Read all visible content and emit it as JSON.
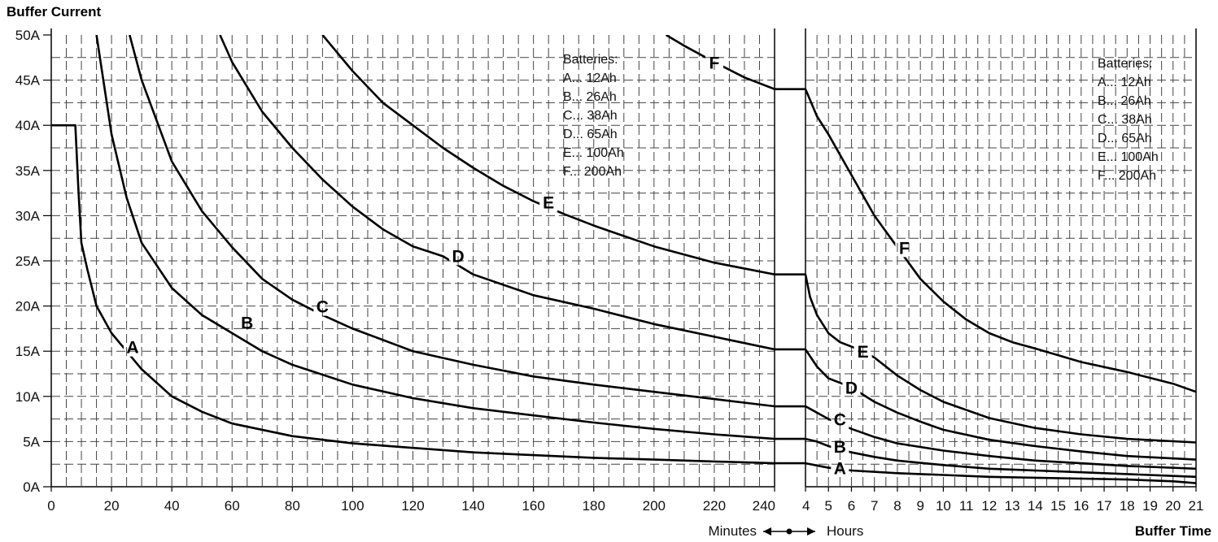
{
  "chart_data": {
    "type": "line",
    "title": "Buffer Current",
    "ylabel": "Buffer Current",
    "xlabel": "Buffer Time",
    "ylim": [
      0,
      50
    ],
    "y_ticks": [
      "0A",
      "5A",
      "10A",
      "15A",
      "20A",
      "25A",
      "30A",
      "35A",
      "40A",
      "45A",
      "50A"
    ],
    "scale_switch_label": {
      "left": "Minutes",
      "right": "Hours"
    },
    "panels": [
      {
        "name": "minutes",
        "unit": "Minutes",
        "xlim": [
          0,
          240
        ],
        "x_ticks": [
          "0",
          "20",
          "40",
          "60",
          "80",
          "100",
          "120",
          "140",
          "160",
          "180",
          "200",
          "220",
          "240"
        ],
        "legend_title": "Batteries:",
        "legend": [
          "A... 12Ah",
          "B... 26Ah",
          "C... 38Ah",
          "D... 65Ah",
          "E... 100Ah",
          "F... 200Ah"
        ],
        "series": [
          {
            "name": "A",
            "label_at": [
              27,
              15.5
            ],
            "x": [
              0,
              8,
              9,
              10,
              12,
              15,
              20,
              25,
              30,
              40,
              50,
              60,
              80,
              100,
              120,
              140,
              160,
              180,
              200,
              220,
              240
            ],
            "y": [
              40,
              40,
              33,
              27,
              24,
              20,
              17,
              15,
              13,
              10,
              8.3,
              7,
              5.6,
              4.8,
              4.3,
              3.8,
              3.5,
              3.2,
              3,
              2.8,
              2.6
            ]
          },
          {
            "name": "B",
            "label_at": [
              65,
              18.2
            ],
            "x": [
              15,
              20,
              25,
              30,
              40,
              50,
              60,
              70,
              80,
              100,
              120,
              140,
              160,
              180,
              200,
              220,
              240
            ],
            "y": [
              50,
              39,
              32,
              27,
              22,
              19,
              17,
              15,
              13.5,
              11.3,
              9.8,
              8.7,
              7.9,
              7.1,
              6.4,
              5.8,
              5.3
            ]
          },
          {
            "name": "C",
            "label_at": [
              90,
              20
            ],
            "x": [
              26,
              30,
              40,
              50,
              60,
              70,
              80,
              90,
              100,
              120,
              140,
              160,
              180,
              200,
              220,
              240
            ],
            "y": [
              50,
              45,
              36,
              30.5,
              26.5,
              23,
              20.7,
              19,
              17.5,
              15,
              13.5,
              12.2,
              11.3,
              10.5,
              9.7,
              8.9
            ]
          },
          {
            "name": "D",
            "label_at": [
              135,
              25.6
            ],
            "x": [
              56,
              60,
              70,
              80,
              90,
              100,
              110,
              120,
              130,
              140,
              160,
              180,
              200,
              220,
              240
            ],
            "y": [
              50,
              47,
              41.5,
              37.5,
              34,
              31,
              28.5,
              26.6,
              25.5,
              23.5,
              21.2,
              19.7,
              18,
              16.6,
              15.2
            ]
          },
          {
            "name": "E",
            "label_at": [
              165,
              31.5
            ],
            "x": [
              90,
              100,
              110,
              120,
              130,
              140,
              150,
              160,
              170,
              180,
              200,
              220,
              240
            ],
            "y": [
              50,
              46,
              42.5,
              40,
              37.5,
              35.3,
              33.3,
              31.6,
              30.2,
              28.9,
              26.6,
              24.8,
              23.5
            ]
          },
          {
            "name": "F",
            "label_at": [
              220,
              47
            ],
            "x": [
              204,
              210,
              220,
              230,
              240
            ],
            "y": [
              50,
              48.8,
              47,
              45.3,
              44
            ]
          }
        ]
      },
      {
        "name": "hours",
        "unit": "Hours",
        "xlim": [
          4,
          21
        ],
        "x_ticks": [
          "4",
          "5",
          "6",
          "7",
          "8",
          "9",
          "10",
          "11",
          "12",
          "13",
          "14",
          "15",
          "16",
          "17",
          "18",
          "19",
          "20",
          "21"
        ],
        "legend_title": "Batteries:",
        "legend": [
          "A... 12Ah",
          "B... 26Ah",
          "C... 38Ah",
          "D... 65Ah",
          "E... 100Ah",
          "F... 200Ah"
        ],
        "series": [
          {
            "name": "A",
            "label_at": [
              5.5,
              2.1
            ],
            "x": [
              4,
              5,
              6,
              8,
              10,
              12,
              14,
              16,
              18,
              20,
              21
            ],
            "y": [
              2.6,
              2.1,
              1.8,
              1.5,
              1.3,
              1.1,
              1.0,
              0.9,
              0.8,
              0.6,
              0.4
            ]
          },
          {
            "name": "B",
            "label_at": [
              5.5,
              4.5
            ],
            "x": [
              4,
              4.5,
              5,
              6,
              7,
              8,
              10,
              12,
              14,
              16,
              18,
              20,
              21
            ],
            "y": [
              5.3,
              5.0,
              4.5,
              3.8,
              3.3,
              2.9,
              2.4,
              2.0,
              1.8,
              1.6,
              1.4,
              1.2,
              1.1
            ]
          },
          {
            "name": "C",
            "label_at": [
              5.5,
              7.5
            ],
            "x": [
              4,
              4.5,
              5,
              6,
              7,
              8,
              10,
              12,
              14,
              16,
              18,
              21
            ],
            "y": [
              8.9,
              8.2,
              7.5,
              6.4,
              5.5,
              4.8,
              4.0,
              3.4,
              2.9,
              2.6,
              2.3,
              2.0
            ]
          },
          {
            "name": "D",
            "label_at": [
              6,
              11
            ],
            "x": [
              4,
              4.5,
              5,
              5.5,
              6,
              7,
              8,
              9,
              10,
              12,
              14,
              16,
              18,
              21
            ],
            "y": [
              15.2,
              13.3,
              12,
              11.5,
              11,
              9.4,
              8.2,
              7.2,
              6.3,
              5.2,
              4.5,
              3.9,
              3.4,
              3.0
            ]
          },
          {
            "name": "E",
            "label_at": [
              6.5,
              15
            ],
            "x": [
              4,
              4.2,
              4.5,
              5,
              5.5,
              6,
              6.5,
              7,
              8,
              9,
              10,
              12,
              14,
              16,
              18,
              21
            ],
            "y": [
              23.5,
              21,
              19,
              17,
              16,
              15.5,
              15,
              14.3,
              12.3,
              10.7,
              9.4,
              7.6,
              6.5,
              5.8,
              5.3,
              4.9
            ]
          },
          {
            "name": "F",
            "label_at": [
              8.3,
              26.5
            ],
            "x": [
              4,
              4.5,
              5,
              6,
              7,
              8,
              9,
              10,
              11,
              12,
              13,
              14,
              16,
              18,
              20,
              21
            ],
            "y": [
              44,
              41,
              39,
              34.5,
              30,
              26.5,
              23,
              20.5,
              18.5,
              17,
              16,
              15.3,
              13.8,
              12.7,
              11.4,
              10.5
            ]
          }
        ]
      }
    ]
  }
}
